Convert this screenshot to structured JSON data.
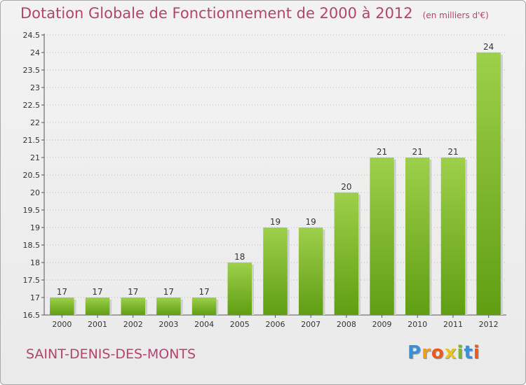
{
  "header": {
    "title": "Dotation Globale de Fonctionnement de 2000 à 2012",
    "unit": "(en milliers d'€)"
  },
  "footer": {
    "commune": "SAINT-DENIS-DES-MONTS",
    "logo_text": "Proxiti"
  },
  "colors": {
    "title": "#b3446c",
    "bar_light": "#9ed04a",
    "bar_dark": "#5f9e12",
    "grid": "#bdbdbd"
  },
  "chart_data": {
    "type": "bar",
    "categories": [
      "2000",
      "2001",
      "2002",
      "2003",
      "2004",
      "2005",
      "2006",
      "2007",
      "2008",
      "2009",
      "2010",
      "2011",
      "2012"
    ],
    "values": [
      17,
      17,
      17,
      17,
      17,
      18,
      19,
      19,
      20,
      21,
      21,
      21,
      24
    ],
    "data_labels": [
      "17",
      "17",
      "17",
      "17",
      "17",
      "18",
      "19",
      "19",
      "20",
      "21",
      "21",
      "21",
      "24"
    ],
    "yticks": [
      "16.5",
      "17",
      "17.5",
      "18",
      "18.5",
      "19",
      "19.5",
      "20",
      "20.5",
      "21",
      "21.5",
      "22",
      "22.5",
      "23",
      "23.5",
      "24",
      "24.5"
    ],
    "ylim": [
      16.5,
      24.5
    ],
    "grid": true
  }
}
